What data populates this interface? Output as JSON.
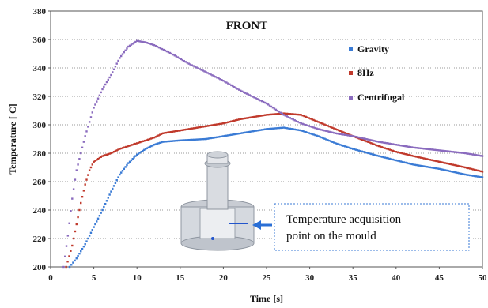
{
  "chart_data": {
    "type": "scatter",
    "title": "FRONT",
    "xlabel": "Time [s]",
    "ylabel": "Temperature [ C]",
    "xlim": [
      0,
      50
    ],
    "ylim": [
      200,
      380
    ],
    "x_ticks": [
      0,
      5,
      10,
      15,
      20,
      25,
      30,
      35,
      40,
      45,
      50
    ],
    "y_ticks": [
      200,
      220,
      240,
      260,
      280,
      300,
      320,
      340,
      360,
      380
    ],
    "grid": "horizontal dotted",
    "legend_position": "right",
    "annotation": {
      "lines": [
        "Temperature acquisition",
        "point on the mould"
      ]
    },
    "series": [
      {
        "name": "Gravity",
        "color": "#3a7bd5",
        "points": [
          [
            2.2,
            200
          ],
          [
            3,
            206
          ],
          [
            4,
            216
          ],
          [
            5,
            228
          ],
          [
            6,
            240
          ],
          [
            7,
            253
          ],
          [
            8,
            265
          ],
          [
            9,
            273
          ],
          [
            10,
            279
          ],
          [
            11,
            283
          ],
          [
            12,
            286
          ],
          [
            13,
            288
          ],
          [
            15,
            289
          ],
          [
            18,
            290
          ],
          [
            20,
            292
          ],
          [
            22,
            294
          ],
          [
            25,
            297
          ],
          [
            27,
            298
          ],
          [
            29,
            296
          ],
          [
            31,
            292
          ],
          [
            33,
            287
          ],
          [
            35,
            283
          ],
          [
            38,
            278
          ],
          [
            40,
            275
          ],
          [
            42,
            272
          ],
          [
            45,
            269
          ],
          [
            48,
            265
          ],
          [
            50,
            263
          ]
        ]
      },
      {
        "name": "8Hz",
        "color": "#c0392b",
        "points": [
          [
            1.8,
            200
          ],
          [
            2.5,
            215
          ],
          [
            3,
            230
          ],
          [
            3.5,
            245
          ],
          [
            4,
            258
          ],
          [
            4.5,
            268
          ],
          [
            5,
            274
          ],
          [
            6,
            278
          ],
          [
            7,
            280
          ],
          [
            8,
            283
          ],
          [
            10,
            287
          ],
          [
            12,
            291
          ],
          [
            13,
            294
          ],
          [
            15,
            296
          ],
          [
            18,
            299
          ],
          [
            20,
            301
          ],
          [
            22,
            304
          ],
          [
            25,
            307
          ],
          [
            27,
            308
          ],
          [
            29,
            307
          ],
          [
            31,
            302
          ],
          [
            33,
            297
          ],
          [
            35,
            292
          ],
          [
            38,
            285
          ],
          [
            40,
            281
          ],
          [
            42,
            278
          ],
          [
            45,
            274
          ],
          [
            48,
            270
          ],
          [
            50,
            267
          ]
        ]
      },
      {
        "name": "Centrifugal",
        "color": "#8a6bbe",
        "points": [
          [
            1.5,
            200
          ],
          [
            2,
            222
          ],
          [
            2.5,
            248
          ],
          [
            3,
            268
          ],
          [
            4,
            292
          ],
          [
            5,
            312
          ],
          [
            6,
            325
          ],
          [
            7,
            335
          ],
          [
            8,
            347
          ],
          [
            9,
            355
          ],
          [
            10,
            359
          ],
          [
            11,
            358
          ],
          [
            12,
            356
          ],
          [
            14,
            350
          ],
          [
            16,
            343
          ],
          [
            18,
            337
          ],
          [
            20,
            331
          ],
          [
            22,
            324
          ],
          [
            25,
            315
          ],
          [
            27,
            307
          ],
          [
            29,
            301
          ],
          [
            31,
            297
          ],
          [
            33,
            294
          ],
          [
            35,
            292
          ],
          [
            38,
            288
          ],
          [
            40,
            286
          ],
          [
            42,
            284
          ],
          [
            45,
            282
          ],
          [
            48,
            280
          ],
          [
            50,
            278
          ]
        ]
      }
    ]
  }
}
